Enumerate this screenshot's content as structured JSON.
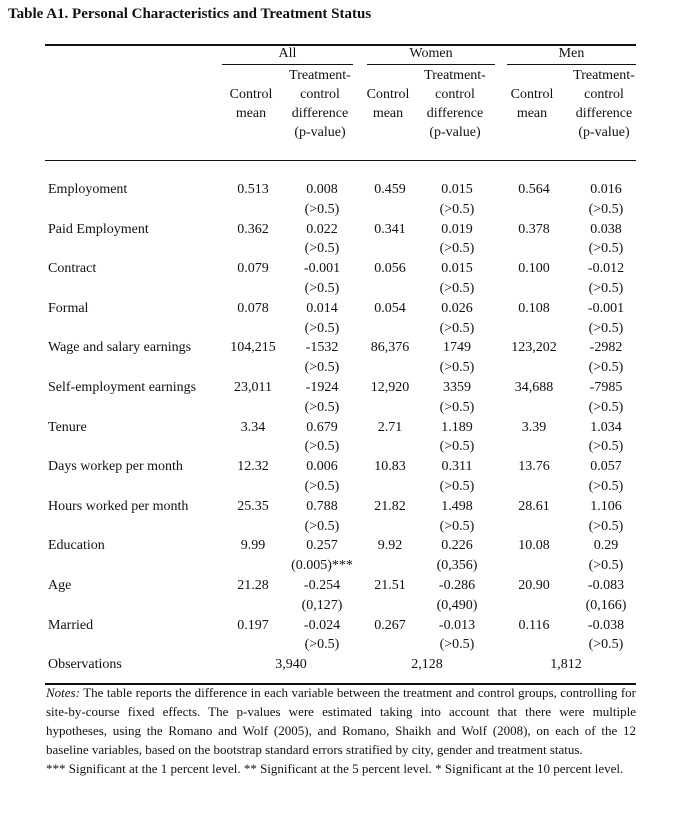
{
  "title": "Table A1. Personal Characteristics and Treatment Status",
  "groups": [
    "All",
    "Women",
    "Men"
  ],
  "subheaders": {
    "control": [
      "Control",
      "mean"
    ],
    "diff": [
      "Treatment-",
      "control",
      "difference",
      "(p-value)"
    ]
  },
  "rows": [
    {
      "label": "Employoment",
      "v": [
        [
          "0.513",
          "0.008",
          "(>0.5)"
        ],
        [
          "0.459",
          "0.015",
          "(>0.5)"
        ],
        [
          "0.564",
          "0.016",
          "(>0.5)"
        ]
      ]
    },
    {
      "label": "Paid Employment",
      "v": [
        [
          "0.362",
          "0.022",
          "(>0.5)"
        ],
        [
          "0.341",
          "0.019",
          "(>0.5)"
        ],
        [
          "0.378",
          "0.038",
          "(>0.5)"
        ]
      ]
    },
    {
      "label": "Contract",
      "v": [
        [
          "0.079",
          "-0.001",
          "(>0.5)"
        ],
        [
          "0.056",
          "0.015",
          "(>0.5)"
        ],
        [
          "0.100",
          "-0.012",
          "(>0.5)"
        ]
      ]
    },
    {
      "label": "Formal",
      "v": [
        [
          "0.078",
          "0.014",
          "(>0.5)"
        ],
        [
          "0.054",
          "0.026",
          "(>0.5)"
        ],
        [
          "0.108",
          "-0.001",
          "(>0.5)"
        ]
      ]
    },
    {
      "label": "Wage and salary earnings",
      "v": [
        [
          "104,215",
          "-1532",
          "(>0.5)"
        ],
        [
          "86,376",
          "1749",
          "(>0.5)"
        ],
        [
          "123,202",
          "-2982",
          "(>0.5)"
        ]
      ]
    },
    {
      "label": "Self-employment earnings",
      "v": [
        [
          "23,011",
          "-1924",
          "(>0.5)"
        ],
        [
          "12,920",
          "3359",
          "(>0.5)"
        ],
        [
          "34,688",
          "-7985",
          "(>0.5)"
        ]
      ]
    },
    {
      "label": "Tenure",
      "v": [
        [
          "3.34",
          "0.679",
          "(>0.5)"
        ],
        [
          "2.71",
          "1.189",
          "(>0.5)"
        ],
        [
          "3.39",
          "1.034",
          "(>0.5)"
        ]
      ]
    },
    {
      "label": "Days workep per month",
      "v": [
        [
          "12.32",
          "0.006",
          "(>0.5)"
        ],
        [
          "10.83",
          "0.311",
          "(>0.5)"
        ],
        [
          "13.76",
          "0.057",
          "(>0.5)"
        ]
      ]
    },
    {
      "label": "Hours worked per month",
      "v": [
        [
          "25.35",
          "0.788",
          "(>0.5)"
        ],
        [
          "21.82",
          "1.498",
          "(>0.5)"
        ],
        [
          "28.61",
          "1.106",
          "(>0.5)"
        ]
      ]
    },
    {
      "label": "Education",
      "v": [
        [
          "9.99",
          "0.257",
          "(0.005)***"
        ],
        [
          "9.92",
          "0.226",
          "(0,356)"
        ],
        [
          "10.08",
          "0.29",
          "(>0.5)"
        ]
      ]
    },
    {
      "label": "Age",
      "v": [
        [
          "21.28",
          "-0.254",
          "(0,127)"
        ],
        [
          "21.51",
          "-0.286",
          "(0,490)"
        ],
        [
          "20.90",
          "-0.083",
          "(0,166)"
        ]
      ]
    },
    {
      "label": "Married",
      "v": [
        [
          "0.197",
          "-0.024",
          "(>0.5)"
        ],
        [
          "0.267",
          "-0.013",
          "(>0.5)"
        ],
        [
          "0.116",
          "-0.038",
          "(>0.5)"
        ]
      ]
    }
  ],
  "observations": {
    "label": "Observations",
    "values": [
      "3,940",
      "2,128",
      "1,812"
    ]
  },
  "notes": {
    "lead": "Notes:",
    "text": "The table reports the difference in each variable between the treatment and control groups, controlling for site-by-course fixed effects. The p-values were estimated taking into account that there were multiple hypotheses, using the Romano and Wolf (2005), and Romano, Shaikh and Wolf (2008), on each of the 12 baseline variables, based on the bootstrap standard errors stratified by city, gender and treatment status.",
    "significance": "*** Significant at the 1 percent level. ** Significant at the 5 percent level. * Significant at the 10 percent level."
  }
}
